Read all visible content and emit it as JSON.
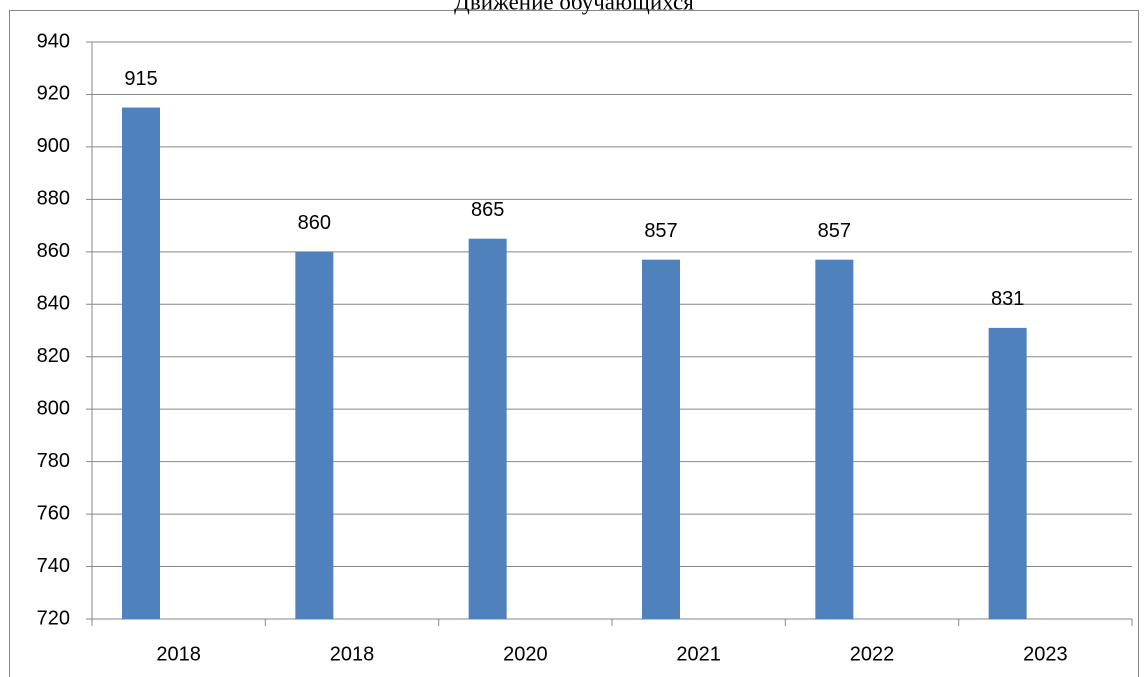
{
  "chart_data": {
    "type": "bar",
    "title": "Движение обучающихся",
    "categories": [
      "2018",
      "2018",
      "2020",
      "2021",
      "2022",
      "2023"
    ],
    "values": [
      915,
      860,
      865,
      857,
      857,
      831
    ],
    "color": "#4f81bd",
    "ylim": [
      720,
      940
    ],
    "yticks": [
      720,
      740,
      760,
      780,
      800,
      820,
      840,
      860,
      880,
      900,
      920,
      940
    ],
    "grid": true
  }
}
